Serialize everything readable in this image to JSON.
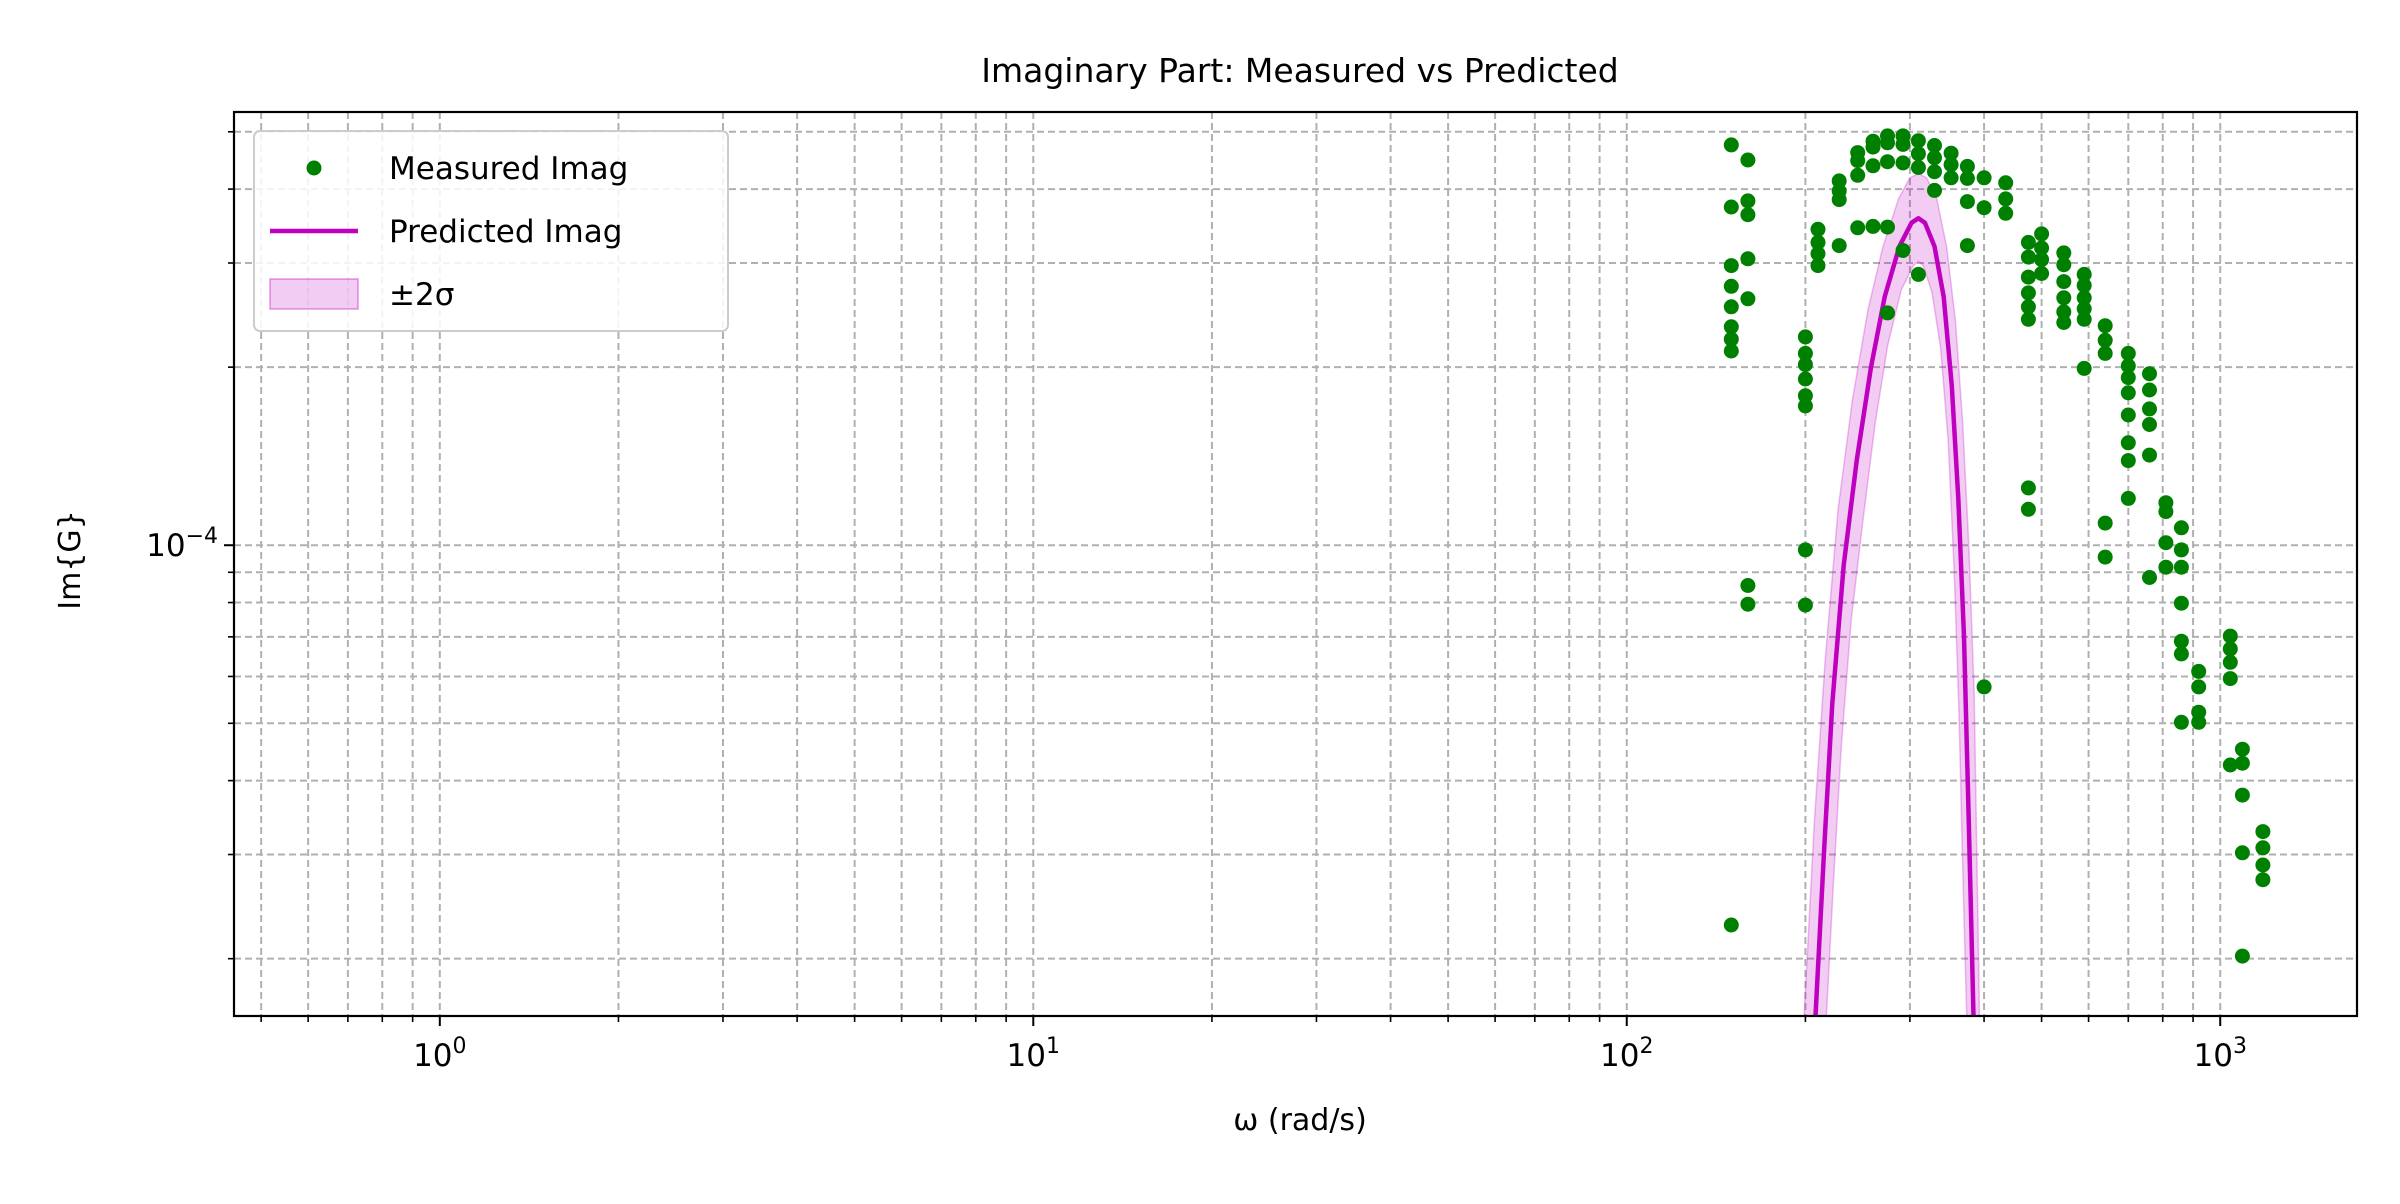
{
  "colors": {
    "measured": "#008000",
    "predicted": "#bf00bf",
    "band_fill": "#bf00bf",
    "grid": "#b0b0b0"
  },
  "chart_data": {
    "type": "scatter",
    "title": "Imaginary Part: Measured vs Predicted",
    "xlabel": "ω (rad/s)",
    "ylabel": "Im{G}",
    "xscale": "log",
    "yscale": "log",
    "xlim": [
      0.45,
      1700
    ],
    "ylim": [
      1.6e-05,
      0.00054
    ],
    "grid": true,
    "legend_position": "top-left",
    "x_ticks": [
      {
        "value": 1,
        "base": "10",
        "exp": "0"
      },
      {
        "value": 10,
        "base": "10",
        "exp": "1"
      },
      {
        "value": 100,
        "base": "10",
        "exp": "2"
      },
      {
        "value": 1000,
        "base": "10",
        "exp": "3"
      }
    ],
    "y_ticks": [
      {
        "value": 0.0001,
        "base": "10",
        "exp": "−4"
      }
    ],
    "legend": [
      {
        "label": "Measured Imag",
        "kind": "marker"
      },
      {
        "label": "Predicted Imag",
        "kind": "line"
      },
      {
        "label": "±2σ",
        "kind": "band"
      }
    ],
    "measured": {
      "name": "Measured Imag",
      "points": [
        [
          150,
          0.000475
        ],
        [
          150,
          0.000373
        ],
        [
          150,
          0.000297
        ],
        [
          150,
          0.000274
        ],
        [
          150,
          0.000253
        ],
        [
          150,
          0.000234
        ],
        [
          150,
          0.000223
        ],
        [
          150,
          0.000213
        ],
        [
          150,
          2.28e-05
        ],
        [
          160,
          0.000448
        ],
        [
          160,
          0.000382
        ],
        [
          160,
          0.000362
        ],
        [
          160,
          0.000305
        ],
        [
          160,
          0.000261
        ],
        [
          160,
          8.55e-05
        ],
        [
          160,
          7.95e-05
        ],
        [
          200,
          0.000225
        ],
        [
          200,
          0.000211
        ],
        [
          200,
          0.000202
        ],
        [
          200,
          0.000191
        ],
        [
          200,
          0.000179
        ],
        [
          200,
          0.000172
        ],
        [
          200,
          9.82e-05
        ],
        [
          200,
          7.92e-05
        ],
        [
          210,
          0.000342
        ],
        [
          210,
          0.000325
        ],
        [
          210,
          0.000311
        ],
        [
          210,
          0.000297
        ],
        [
          228,
          0.000413
        ],
        [
          228,
          0.000397
        ],
        [
          228,
          0.000384
        ],
        [
          228,
          0.000321
        ],
        [
          245,
          0.000461
        ],
        [
          245,
          0.000447
        ],
        [
          245,
          0.000422
        ],
        [
          245,
          0.000344
        ],
        [
          260,
          0.000482
        ],
        [
          260,
          0.000471
        ],
        [
          260,
          0.000438
        ],
        [
          260,
          0.000346
        ],
        [
          275,
          0.000492
        ],
        [
          275,
          0.000479
        ],
        [
          275,
          0.000445
        ],
        [
          275,
          0.000345
        ],
        [
          275,
          0.000247
        ],
        [
          292,
          0.000492
        ],
        [
          292,
          0.000476
        ],
        [
          292,
          0.000443
        ],
        [
          292,
          0.000315
        ],
        [
          310,
          0.000483
        ],
        [
          310,
          0.000459
        ],
        [
          310,
          0.000435
        ],
        [
          310,
          0.000287
        ],
        [
          330,
          0.000474
        ],
        [
          330,
          0.000452
        ],
        [
          330,
          0.000428
        ],
        [
          330,
          0.000398
        ],
        [
          352,
          0.00046
        ],
        [
          352,
          0.00044
        ],
        [
          352,
          0.000418
        ],
        [
          375,
          0.000437
        ],
        [
          375,
          0.000417
        ],
        [
          375,
          0.000381
        ],
        [
          375,
          0.000321
        ],
        [
          400,
          0.000418
        ],
        [
          400,
          0.000372
        ],
        [
          400,
          5.76e-05
        ],
        [
          435,
          0.00041
        ],
        [
          435,
          0.000385
        ],
        [
          435,
          0.000364
        ],
        [
          475,
          0.000325
        ],
        [
          475,
          0.000307
        ],
        [
          475,
          0.000284
        ],
        [
          475,
          0.000267
        ],
        [
          475,
          0.000253
        ],
        [
          475,
          0.000241
        ],
        [
          475,
          0.000125
        ],
        [
          475,
          0.000115
        ],
        [
          500,
          0.000336
        ],
        [
          500,
          0.000318
        ],
        [
          500,
          0.000304
        ],
        [
          500,
          0.000288
        ],
        [
          545,
          0.000312
        ],
        [
          545,
          0.000298
        ],
        [
          545,
          0.000279
        ],
        [
          545,
          0.000262
        ],
        [
          545,
          0.000248
        ],
        [
          545,
          0.000238
        ],
        [
          590,
          0.000287
        ],
        [
          590,
          0.000275
        ],
        [
          590,
          0.000262
        ],
        [
          590,
          0.000251
        ],
        [
          590,
          0.000241
        ],
        [
          590,
          0.000199
        ],
        [
          640,
          0.000235
        ],
        [
          640,
          0.000222
        ],
        [
          640,
          0.000211
        ],
        [
          640,
          0.000109
        ],
        [
          640,
          9.55e-05
        ],
        [
          700,
          0.000211
        ],
        [
          700,
          0.000201
        ],
        [
          700,
          0.000192
        ],
        [
          700,
          0.000181
        ],
        [
          700,
          0.000166
        ],
        [
          700,
          0.000149
        ],
        [
          700,
          0.000139
        ],
        [
          700,
          0.00012
        ],
        [
          760,
          0.000195
        ],
        [
          760,
          0.000183
        ],
        [
          760,
          0.00017
        ],
        [
          760,
          0.00016
        ],
        [
          760,
          0.000142
        ],
        [
          760,
          8.82e-05
        ],
        [
          810,
          0.000118
        ],
        [
          810,
          0.000114
        ],
        [
          810,
          0.000101
        ],
        [
          810,
          9.18e-05
        ],
        [
          860,
          0.000107
        ],
        [
          860,
          9.82e-05
        ],
        [
          860,
          9.18e-05
        ],
        [
          860,
          7.98e-05
        ],
        [
          860,
          6.88e-05
        ],
        [
          860,
          6.55e-05
        ],
        [
          860,
          5.02e-05
        ],
        [
          920,
          6.12e-05
        ],
        [
          920,
          5.76e-05
        ],
        [
          920,
          5.22e-05
        ],
        [
          920,
          5.02e-05
        ],
        [
          1040,
          7.02e-05
        ],
        [
          1040,
          6.68e-05
        ],
        [
          1040,
          6.34e-05
        ],
        [
          1040,
          5.95e-05
        ],
        [
          1040,
          4.25e-05
        ],
        [
          1090,
          4.52e-05
        ],
        [
          1090,
          4.28e-05
        ],
        [
          1090,
          3.78e-05
        ],
        [
          1090,
          3.02e-05
        ],
        [
          1090,
          2.02e-05
        ],
        [
          1180,
          3.28e-05
        ],
        [
          1180,
          3.08e-05
        ],
        [
          1180,
          2.88e-05
        ],
        [
          1180,
          2.72e-05
        ]
      ]
    },
    "predicted": {
      "name": "Predicted Imag",
      "points": [
        [
          208,
          1.6e-05
        ],
        [
          215,
          3.05e-05
        ],
        [
          222,
          5.4e-05
        ],
        [
          232,
          9.25e-05
        ],
        [
          244,
          0.000139
        ],
        [
          258,
          0.0002
        ],
        [
          272,
          0.000263
        ],
        [
          288,
          0.00032
        ],
        [
          302,
          0.000351
        ],
        [
          310,
          0.000357
        ],
        [
          318,
          0.000351
        ],
        [
          330,
          0.00032
        ],
        [
          342,
          0.000263
        ],
        [
          353,
          0.000186
        ],
        [
          362,
          0.00012
        ],
        [
          370,
          7e-05
        ],
        [
          377,
          3.4e-05
        ],
        [
          384,
          1.6e-05
        ]
      ]
    },
    "band": {
      "name": "±2σ",
      "upper": [
        [
          199,
          1.6e-05
        ],
        [
          207,
          3.4e-05
        ],
        [
          216,
          6.4e-05
        ],
        [
          227,
          0.000115
        ],
        [
          240,
          0.000176
        ],
        [
          255,
          0.00025
        ],
        [
          270,
          0.000319
        ],
        [
          287,
          0.000385
        ],
        [
          300,
          0.000418
        ],
        [
          310,
          0.000425
        ],
        [
          320,
          0.000418
        ],
        [
          333,
          0.000385
        ],
        [
          346,
          0.000319
        ],
        [
          358,
          0.000239
        ],
        [
          368,
          0.000162
        ],
        [
          377,
          0.0001
        ],
        [
          385,
          5.6e-05
        ],
        [
          393,
          1.6e-05
        ]
      ],
      "lower": [
        [
          217,
          1.6e-05
        ],
        [
          223,
          2.7e-05
        ],
        [
          230,
          4.6e-05
        ],
        [
          239,
          7.5e-05
        ],
        [
          250,
          0.00011
        ],
        [
          262,
          0.00016
        ],
        [
          275,
          0.000217
        ],
        [
          290,
          0.00027
        ],
        [
          304,
          0.000297
        ],
        [
          310,
          0.000302
        ],
        [
          316,
          0.000297
        ],
        [
          327,
          0.000267
        ],
        [
          338,
          0.000215
        ],
        [
          348,
          0.00015
        ],
        [
          356,
          9.2e-05
        ],
        [
          363,
          5.2e-05
        ],
        [
          369,
          2.6e-05
        ],
        [
          374,
          1.6e-05
        ]
      ]
    }
  }
}
